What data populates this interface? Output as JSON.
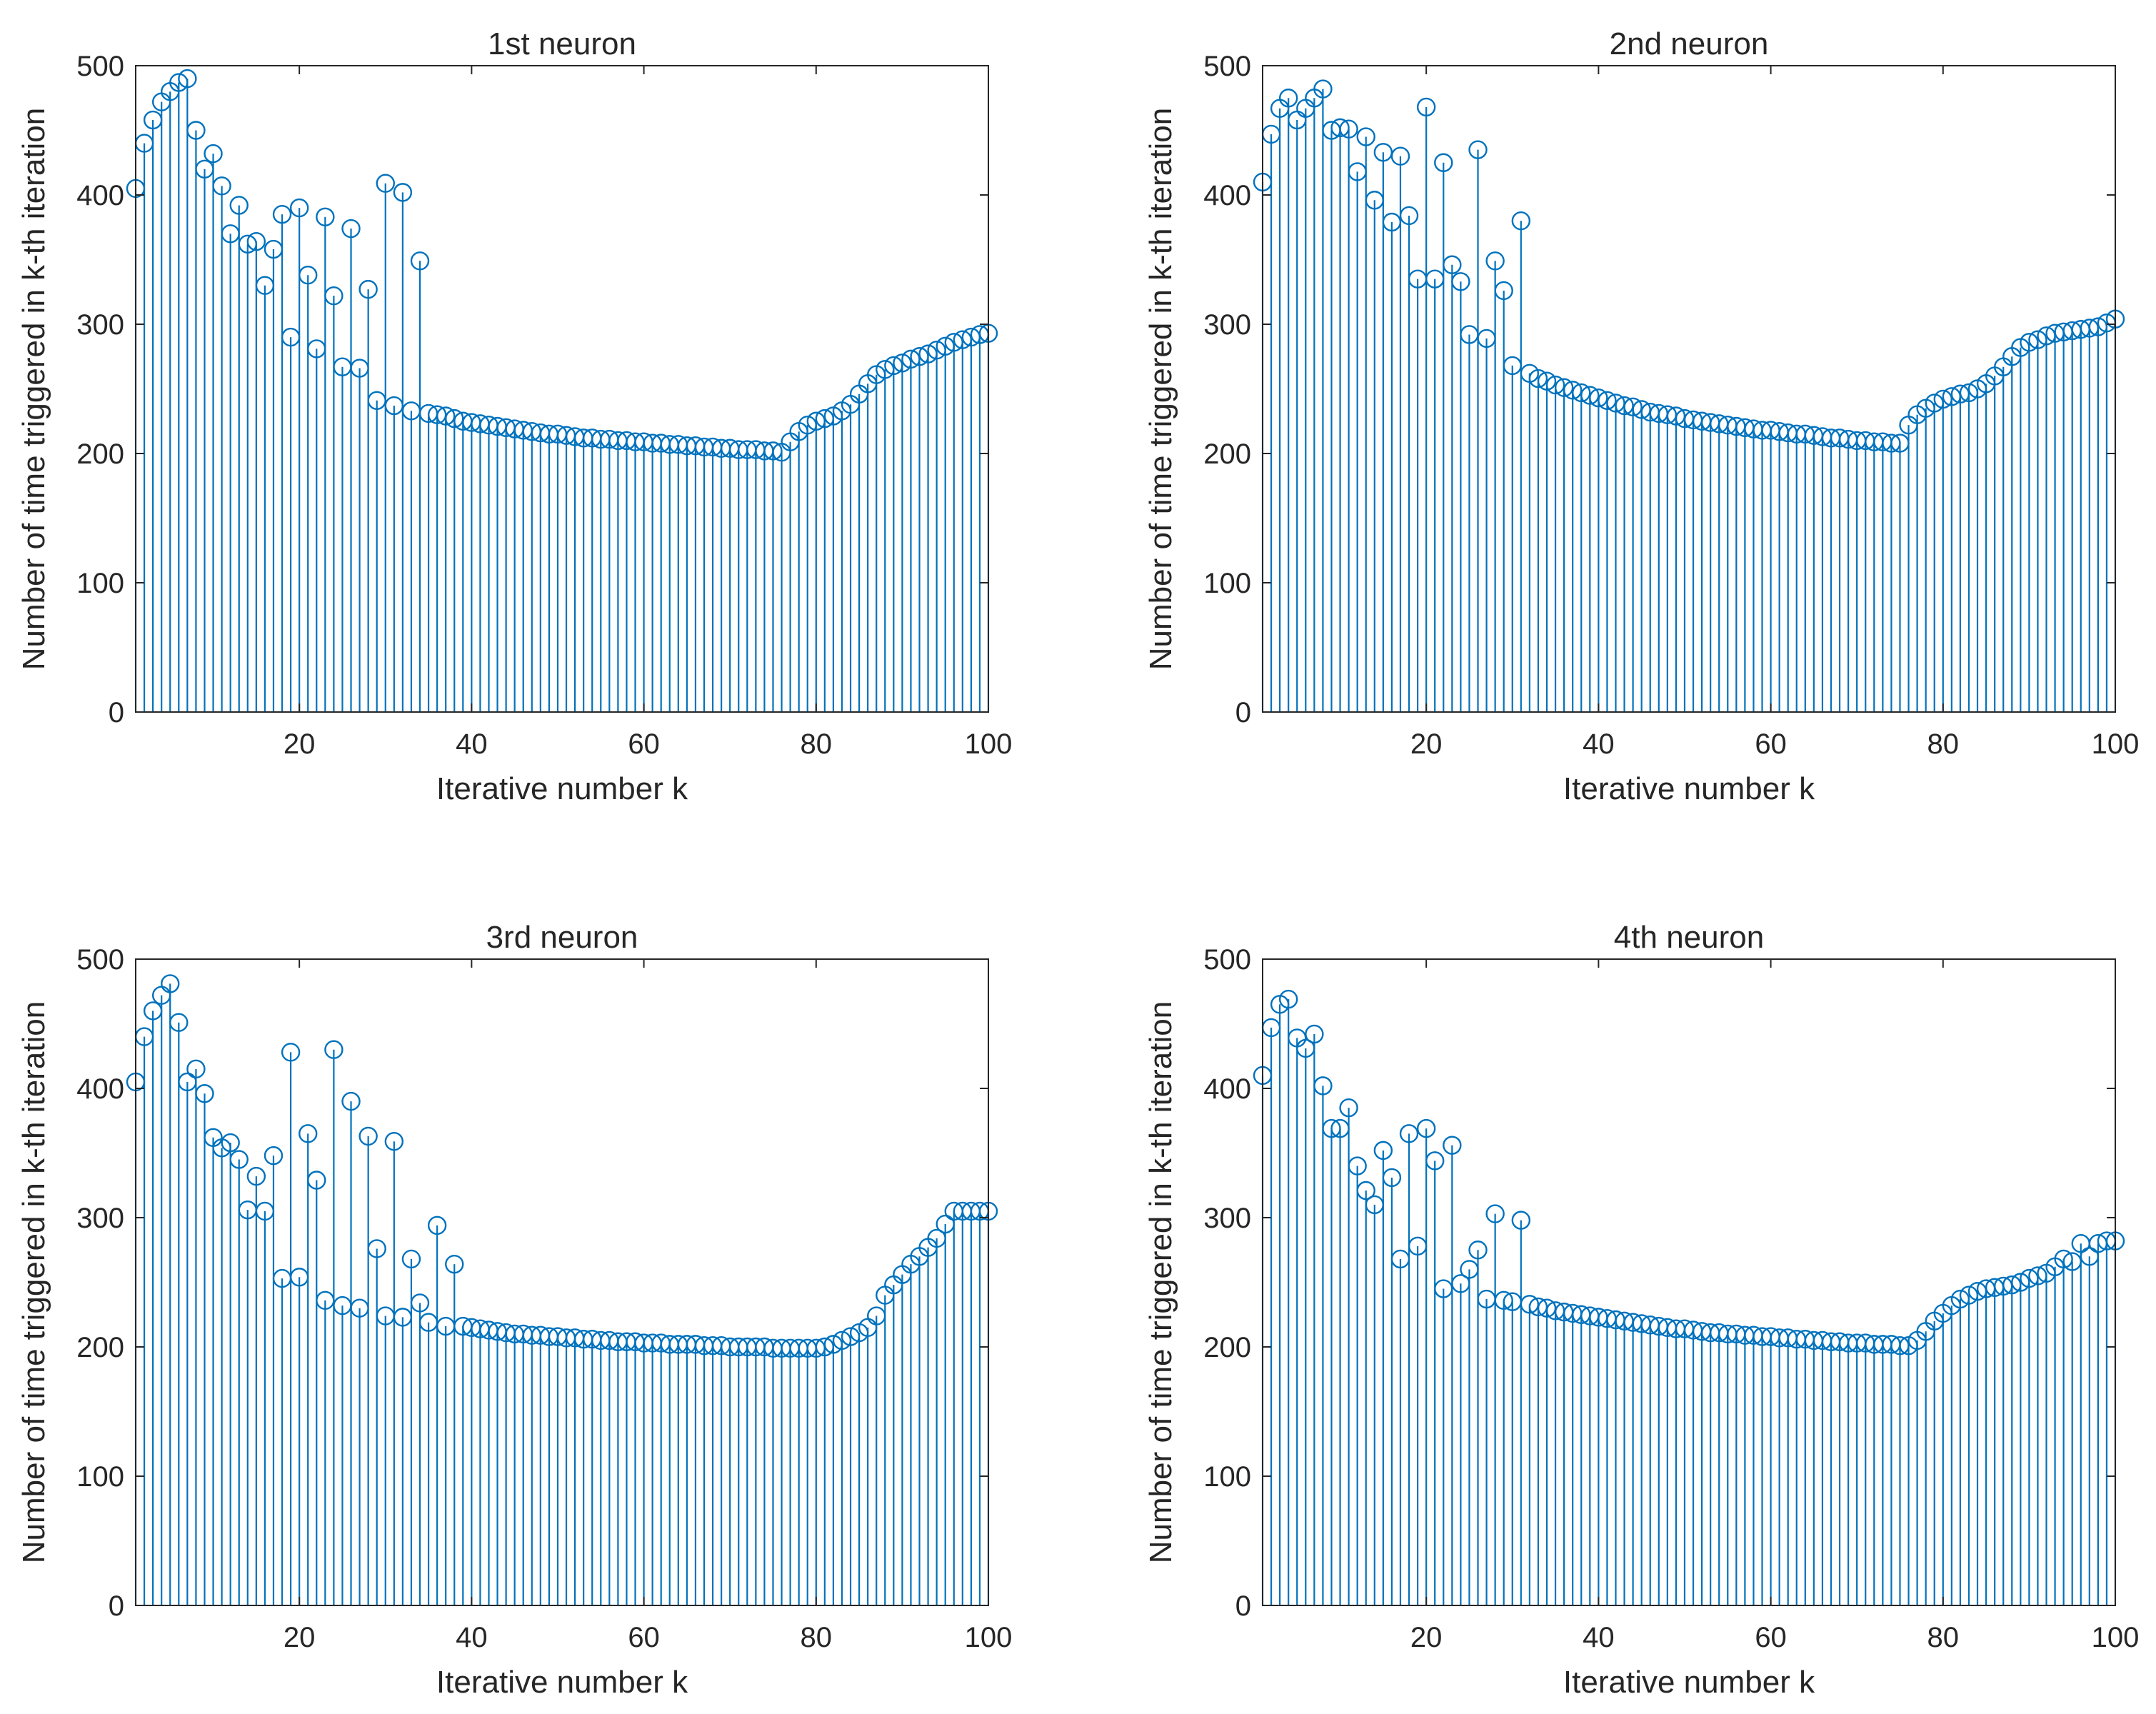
{
  "style": {
    "series_color": "#0072BD",
    "axis_color": "#262626",
    "background": "#ffffff"
  },
  "chart_data": [
    {
      "type": "stem",
      "title": "1st neuron",
      "xlabel": "Iterative number k",
      "ylabel": "Number of time triggered in k-th iteration",
      "xlim": [
        1,
        100
      ],
      "ylim": [
        0,
        500
      ],
      "xticks": [
        20,
        40,
        60,
        80,
        100
      ],
      "yticks": [
        0,
        100,
        200,
        300,
        400,
        500
      ],
      "grid": false,
      "x": [
        1,
        2,
        3,
        4,
        5,
        6,
        7,
        8,
        9,
        10,
        11,
        12,
        13,
        14,
        15,
        16,
        17,
        18,
        19,
        20,
        21,
        22,
        23,
        24,
        25,
        26,
        27,
        28,
        29,
        30,
        31,
        32,
        33,
        34,
        35,
        36,
        37,
        38,
        39,
        40,
        41,
        42,
        43,
        44,
        45,
        46,
        47,
        48,
        49,
        50,
        51,
        52,
        53,
        54,
        55,
        56,
        57,
        58,
        59,
        60,
        61,
        62,
        63,
        64,
        65,
        66,
        67,
        68,
        69,
        70,
        71,
        72,
        73,
        74,
        75,
        76,
        77,
        78,
        79,
        80,
        81,
        82,
        83,
        84,
        85,
        86,
        87,
        88,
        89,
        90,
        91,
        92,
        93,
        94,
        95,
        96,
        97,
        98,
        99,
        100
      ],
      "values": [
        405,
        440,
        458,
        472,
        480,
        487,
        490,
        450,
        420,
        432,
        407,
        370,
        392,
        362,
        364,
        330,
        358,
        385,
        290,
        390,
        338,
        281,
        383,
        322,
        267,
        374,
        266,
        327,
        241,
        409,
        237,
        402,
        233,
        349,
        231,
        230,
        229,
        227,
        225,
        224,
        223,
        222,
        221,
        220,
        219,
        218,
        217,
        216,
        215,
        215,
        214,
        213,
        212,
        212,
        211,
        211,
        210,
        210,
        209,
        209,
        208,
        208,
        207,
        207,
        206,
        206,
        205,
        205,
        204,
        204,
        203,
        203,
        203,
        202,
        202,
        201,
        209,
        217,
        222,
        225,
        227,
        229,
        233,
        238,
        246,
        254,
        261,
        265,
        268,
        270,
        273,
        275,
        277,
        280,
        283,
        286,
        288,
        290,
        292,
        293
      ]
    },
    {
      "type": "stem",
      "title": "2nd neuron",
      "xlabel": "Iterative number k",
      "ylabel": "Number of time triggered in k-th iteration",
      "xlim": [
        1,
        100
      ],
      "ylim": [
        0,
        500
      ],
      "xticks": [
        20,
        40,
        60,
        80,
        100
      ],
      "yticks": [
        0,
        100,
        200,
        300,
        400,
        500
      ],
      "grid": false,
      "x": [
        1,
        2,
        3,
        4,
        5,
        6,
        7,
        8,
        9,
        10,
        11,
        12,
        13,
        14,
        15,
        16,
        17,
        18,
        19,
        20,
        21,
        22,
        23,
        24,
        25,
        26,
        27,
        28,
        29,
        30,
        31,
        32,
        33,
        34,
        35,
        36,
        37,
        38,
        39,
        40,
        41,
        42,
        43,
        44,
        45,
        46,
        47,
        48,
        49,
        50,
        51,
        52,
        53,
        54,
        55,
        56,
        57,
        58,
        59,
        60,
        61,
        62,
        63,
        64,
        65,
        66,
        67,
        68,
        69,
        70,
        71,
        72,
        73,
        74,
        75,
        76,
        77,
        78,
        79,
        80,
        81,
        82,
        83,
        84,
        85,
        86,
        87,
        88,
        89,
        90,
        91,
        92,
        93,
        94,
        95,
        96,
        97,
        98,
        99,
        100
      ],
      "values": [
        410,
        447,
        467,
        475,
        458,
        467,
        475,
        482,
        450,
        452,
        451,
        418,
        445,
        396,
        433,
        379,
        430,
        384,
        335,
        468,
        335,
        425,
        346,
        333,
        292,
        435,
        289,
        349,
        326,
        268,
        380,
        262,
        258,
        256,
        253,
        251,
        249,
        247,
        245,
        243,
        241,
        239,
        237,
        236,
        234,
        232,
        231,
        230,
        229,
        227,
        226,
        225,
        224,
        223,
        222,
        221,
        220,
        219,
        218,
        218,
        217,
        216,
        215,
        215,
        214,
        213,
        212,
        212,
        211,
        210,
        210,
        209,
        209,
        208,
        208,
        222,
        230,
        235,
        239,
        242,
        244,
        246,
        247,
        250,
        254,
        260,
        267,
        275,
        282,
        286,
        288,
        291,
        293,
        294,
        295,
        296,
        297,
        298,
        301,
        304
      ]
    },
    {
      "type": "stem",
      "title": "3rd neuron",
      "xlabel": "Iterative number k",
      "ylabel": "Number of time triggered in k-th iteration",
      "xlim": [
        1,
        100
      ],
      "ylim": [
        0,
        500
      ],
      "xticks": [
        20,
        40,
        60,
        80,
        100
      ],
      "yticks": [
        0,
        100,
        200,
        300,
        400,
        500
      ],
      "grid": false,
      "x": [
        1,
        2,
        3,
        4,
        5,
        6,
        7,
        8,
        9,
        10,
        11,
        12,
        13,
        14,
        15,
        16,
        17,
        18,
        19,
        20,
        21,
        22,
        23,
        24,
        25,
        26,
        27,
        28,
        29,
        30,
        31,
        32,
        33,
        34,
        35,
        36,
        37,
        38,
        39,
        40,
        41,
        42,
        43,
        44,
        45,
        46,
        47,
        48,
        49,
        50,
        51,
        52,
        53,
        54,
        55,
        56,
        57,
        58,
        59,
        60,
        61,
        62,
        63,
        64,
        65,
        66,
        67,
        68,
        69,
        70,
        71,
        72,
        73,
        74,
        75,
        76,
        77,
        78,
        79,
        80,
        81,
        82,
        83,
        84,
        85,
        86,
        87,
        88,
        89,
        90,
        91,
        92,
        93,
        94,
        95,
        96,
        97,
        98,
        99,
        100
      ],
      "values": [
        405,
        440,
        460,
        472,
        481,
        451,
        405,
        415,
        396,
        362,
        354,
        358,
        345,
        306,
        332,
        305,
        348,
        253,
        428,
        254,
        365,
        329,
        236,
        430,
        232,
        390,
        230,
        363,
        276,
        224,
        359,
        223,
        268,
        234,
        219,
        294,
        216,
        264,
        216,
        215,
        214,
        213,
        212,
        211,
        210,
        210,
        209,
        209,
        208,
        208,
        207,
        207,
        206,
        206,
        205,
        205,
        204,
        204,
        204,
        203,
        203,
        203,
        202,
        202,
        202,
        202,
        201,
        201,
        201,
        200,
        200,
        200,
        200,
        200,
        199,
        199,
        199,
        199,
        199,
        199,
        200,
        202,
        205,
        208,
        211,
        215,
        224,
        240,
        248,
        256,
        264,
        270,
        277,
        284,
        295,
        305,
        305,
        305,
        305,
        305
      ]
    },
    {
      "type": "stem",
      "title": "4th neuron",
      "xlabel": "Iterative number k",
      "ylabel": "Number of time triggered in k-th iteration",
      "xlim": [
        1,
        100
      ],
      "ylim": [
        0,
        500
      ],
      "xticks": [
        20,
        40,
        60,
        80,
        100
      ],
      "yticks": [
        0,
        100,
        200,
        300,
        400,
        500
      ],
      "grid": false,
      "x": [
        1,
        2,
        3,
        4,
        5,
        6,
        7,
        8,
        9,
        10,
        11,
        12,
        13,
        14,
        15,
        16,
        17,
        18,
        19,
        20,
        21,
        22,
        23,
        24,
        25,
        26,
        27,
        28,
        29,
        30,
        31,
        32,
        33,
        34,
        35,
        36,
        37,
        38,
        39,
        40,
        41,
        42,
        43,
        44,
        45,
        46,
        47,
        48,
        49,
        50,
        51,
        52,
        53,
        54,
        55,
        56,
        57,
        58,
        59,
        60,
        61,
        62,
        63,
        64,
        65,
        66,
        67,
        68,
        69,
        70,
        71,
        72,
        73,
        74,
        75,
        76,
        77,
        78,
        79,
        80,
        81,
        82,
        83,
        84,
        85,
        86,
        87,
        88,
        89,
        90,
        91,
        92,
        93,
        94,
        95,
        96,
        97,
        98,
        99,
        100
      ],
      "values": [
        410,
        447,
        465,
        469,
        439,
        431,
        442,
        402,
        369,
        369,
        385,
        340,
        321,
        310,
        352,
        331,
        268,
        365,
        278,
        369,
        344,
        245,
        356,
        249,
        260,
        275,
        237,
        303,
        236,
        235,
        298,
        233,
        231,
        230,
        228,
        227,
        226,
        225,
        224,
        223,
        222,
        221,
        220,
        219,
        218,
        217,
        216,
        215,
        214,
        214,
        213,
        212,
        211,
        211,
        210,
        210,
        209,
        209,
        208,
        208,
        207,
        207,
        206,
        206,
        205,
        205,
        204,
        204,
        203,
        203,
        203,
        202,
        202,
        202,
        201,
        201,
        205,
        212,
        220,
        226,
        232,
        237,
        240,
        243,
        245,
        246,
        247,
        248,
        250,
        253,
        255,
        257,
        262,
        268,
        266,
        280,
        270,
        280,
        282,
        282
      ]
    }
  ]
}
